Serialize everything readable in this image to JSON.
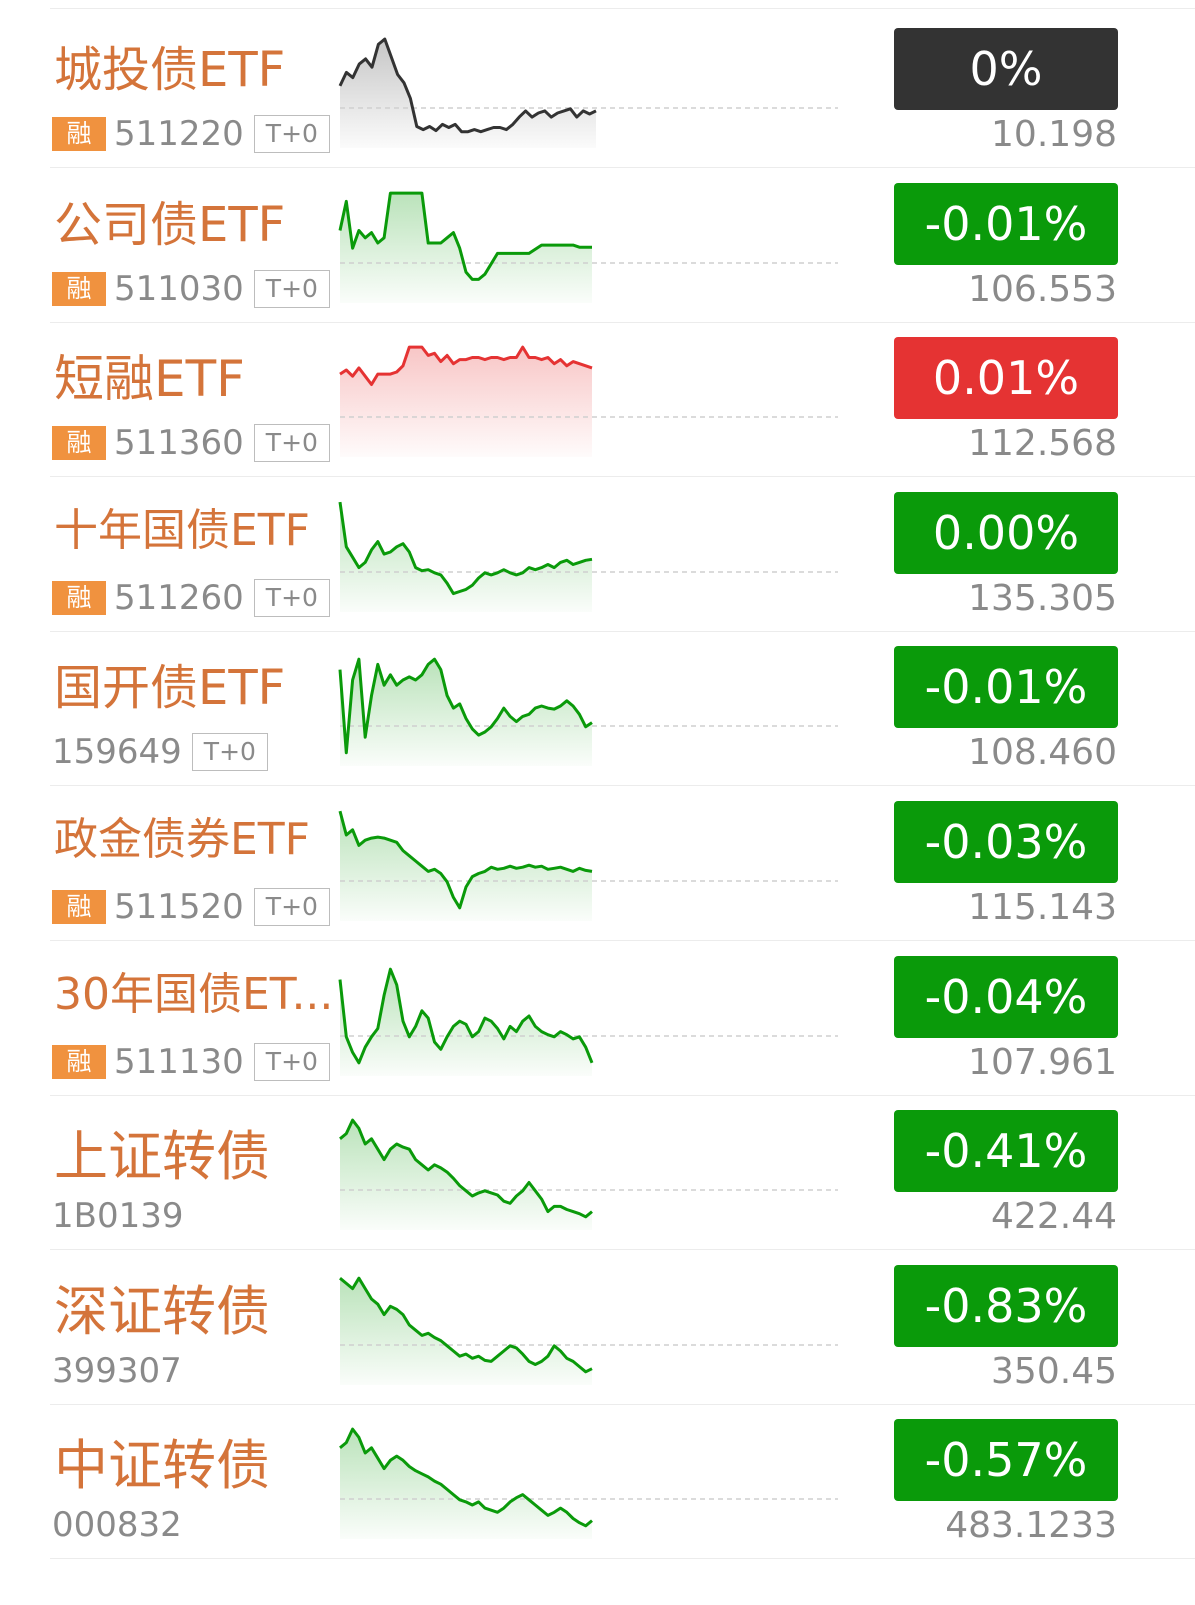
{
  "badge_label": "融",
  "colors": {
    "name": "#d4743a",
    "badge_bg": "#f0923f",
    "up": "#e53333",
    "down": "#0a9a0a",
    "flat": "#333333"
  },
  "items": [
    {
      "name": "城投债ETF",
      "code": "511220",
      "margin": true,
      "t0": "T+0",
      "change": "0%",
      "price": "10.198",
      "trend": "flat",
      "spark": [
        0.52,
        0.65,
        0.6,
        0.73,
        0.78,
        0.7,
        0.92,
        0.97,
        0.8,
        0.63,
        0.55,
        0.4,
        0.13,
        0.1,
        0.13,
        0.09,
        0.15,
        0.12,
        0.15,
        0.08,
        0.08,
        0.1,
        0.08,
        0.1,
        0.12,
        0.12,
        0.1,
        0.15,
        0.22,
        0.28,
        0.22,
        0.26,
        0.28,
        0.22,
        0.26,
        0.28,
        0.3,
        0.22,
        0.28,
        0.25,
        0.28
      ]
    },
    {
      "name": "公司债ETF",
      "code": "511030",
      "margin": true,
      "t0": "T+0",
      "change": "-0.01%",
      "price": "106.553",
      "trend": "down",
      "spark": [
        0.62,
        0.9,
        0.45,
        0.62,
        0.55,
        0.6,
        0.5,
        0.55,
        0.98,
        0.98,
        0.98,
        0.98,
        0.98,
        0.98,
        0.5,
        0.5,
        0.5,
        0.55,
        0.6,
        0.45,
        0.22,
        0.15,
        0.15,
        0.2,
        0.3,
        0.4,
        0.4,
        0.4,
        0.4,
        0.4,
        0.4,
        0.44,
        0.48,
        0.48,
        0.48,
        0.48,
        0.48,
        0.48,
        0.46,
        0.46,
        0.46
      ]
    },
    {
      "name": "短融ETF",
      "code": "511360",
      "margin": true,
      "t0": "T+0",
      "change": "0.01%",
      "price": "112.568",
      "trend": "up",
      "spark": [
        0.72,
        0.76,
        0.7,
        0.78,
        0.7,
        0.62,
        0.72,
        0.72,
        0.72,
        0.74,
        0.8,
        0.98,
        0.98,
        0.98,
        0.9,
        0.92,
        0.84,
        0.9,
        0.82,
        0.86,
        0.86,
        0.88,
        0.88,
        0.86,
        0.88,
        0.88,
        0.86,
        0.88,
        0.88,
        0.98,
        0.88,
        0.88,
        0.86,
        0.88,
        0.82,
        0.86,
        0.8,
        0.84,
        0.82,
        0.8,
        0.78
      ]
    },
    {
      "name": "十年国债ETF",
      "code": "511260",
      "margin": true,
      "t0": "T+0",
      "change": "0.00%",
      "price": "135.305",
      "trend": "down",
      "spark": [
        0.98,
        0.55,
        0.45,
        0.35,
        0.4,
        0.52,
        0.6,
        0.48,
        0.5,
        0.55,
        0.58,
        0.5,
        0.35,
        0.32,
        0.33,
        0.3,
        0.28,
        0.2,
        0.1,
        0.12,
        0.14,
        0.18,
        0.25,
        0.3,
        0.28,
        0.3,
        0.33,
        0.3,
        0.28,
        0.3,
        0.35,
        0.33,
        0.35,
        0.38,
        0.35,
        0.4,
        0.42,
        0.38,
        0.4,
        0.42,
        0.43
      ]
    },
    {
      "name": "国开债ETF",
      "code": "159649",
      "margin": false,
      "t0": "T+0",
      "change": "-0.01%",
      "price": "108.460",
      "trend": "down",
      "spark": [
        0.85,
        0.05,
        0.75,
        0.95,
        0.2,
        0.6,
        0.9,
        0.7,
        0.8,
        0.7,
        0.75,
        0.78,
        0.75,
        0.8,
        0.9,
        0.95,
        0.85,
        0.6,
        0.48,
        0.52,
        0.38,
        0.28,
        0.22,
        0.25,
        0.3,
        0.38,
        0.48,
        0.4,
        0.35,
        0.4,
        0.42,
        0.48,
        0.5,
        0.48,
        0.47,
        0.5,
        0.55,
        0.5,
        0.42,
        0.3,
        0.34
      ]
    },
    {
      "name": "政金债券ETF",
      "code": "511520",
      "margin": true,
      "t0": "T+0",
      "change": "-0.03%",
      "price": "115.143",
      "trend": "down",
      "spark": [
        0.98,
        0.75,
        0.8,
        0.65,
        0.7,
        0.72,
        0.73,
        0.72,
        0.7,
        0.68,
        0.6,
        0.55,
        0.5,
        0.45,
        0.4,
        0.42,
        0.38,
        0.3,
        0.15,
        0.05,
        0.25,
        0.35,
        0.38,
        0.4,
        0.44,
        0.42,
        0.43,
        0.45,
        0.43,
        0.44,
        0.46,
        0.44,
        0.45,
        0.42,
        0.43,
        0.44,
        0.42,
        0.4,
        0.43,
        0.41,
        0.4
      ]
    },
    {
      "name": "30年国债ET...",
      "code": "511130",
      "margin": true,
      "t0": "T+0",
      "change": "-0.04%",
      "price": "107.961",
      "trend": "down",
      "spark": [
        0.85,
        0.3,
        0.15,
        0.05,
        0.2,
        0.3,
        0.38,
        0.7,
        0.95,
        0.8,
        0.45,
        0.3,
        0.4,
        0.55,
        0.48,
        0.25,
        0.18,
        0.3,
        0.4,
        0.45,
        0.42,
        0.3,
        0.35,
        0.48,
        0.45,
        0.38,
        0.28,
        0.4,
        0.35,
        0.45,
        0.5,
        0.4,
        0.35,
        0.32,
        0.3,
        0.35,
        0.32,
        0.28,
        0.3,
        0.2,
        0.05
      ]
    },
    {
      "name": "上证转债",
      "code": "1B0139",
      "margin": false,
      "t0": "",
      "change": "-0.41%",
      "price": "422.44",
      "trend": "down",
      "spark": [
        0.8,
        0.85,
        0.98,
        0.9,
        0.75,
        0.8,
        0.7,
        0.6,
        0.7,
        0.75,
        0.72,
        0.7,
        0.6,
        0.55,
        0.5,
        0.55,
        0.52,
        0.48,
        0.42,
        0.35,
        0.3,
        0.25,
        0.28,
        0.3,
        0.28,
        0.26,
        0.2,
        0.18,
        0.25,
        0.3,
        0.38,
        0.3,
        0.22,
        0.1,
        0.15,
        0.15,
        0.12,
        0.1,
        0.08,
        0.05,
        0.1
      ]
    },
    {
      "name": "深证转债",
      "code": "399307",
      "margin": false,
      "t0": "",
      "change": "-0.83%",
      "price": "350.45",
      "trend": "down",
      "spark": [
        0.95,
        0.9,
        0.85,
        0.95,
        0.85,
        0.75,
        0.7,
        0.6,
        0.68,
        0.65,
        0.6,
        0.5,
        0.45,
        0.4,
        0.42,
        0.38,
        0.35,
        0.3,
        0.25,
        0.2,
        0.22,
        0.18,
        0.2,
        0.16,
        0.15,
        0.2,
        0.25,
        0.3,
        0.28,
        0.22,
        0.15,
        0.12,
        0.15,
        0.2,
        0.3,
        0.25,
        0.18,
        0.15,
        0.1,
        0.05,
        0.08
      ]
    },
    {
      "name": "中证转债",
      "code": "000832",
      "margin": false,
      "t0": "",
      "change": "-0.57%",
      "price": "483.1233",
      "trend": "down",
      "spark": [
        0.8,
        0.85,
        0.98,
        0.9,
        0.75,
        0.8,
        0.7,
        0.6,
        0.68,
        0.72,
        0.68,
        0.62,
        0.58,
        0.55,
        0.52,
        0.48,
        0.45,
        0.4,
        0.35,
        0.3,
        0.28,
        0.25,
        0.28,
        0.22,
        0.2,
        0.18,
        0.22,
        0.28,
        0.32,
        0.35,
        0.3,
        0.25,
        0.2,
        0.15,
        0.18,
        0.22,
        0.18,
        0.12,
        0.08,
        0.05,
        0.1
      ]
    }
  ]
}
